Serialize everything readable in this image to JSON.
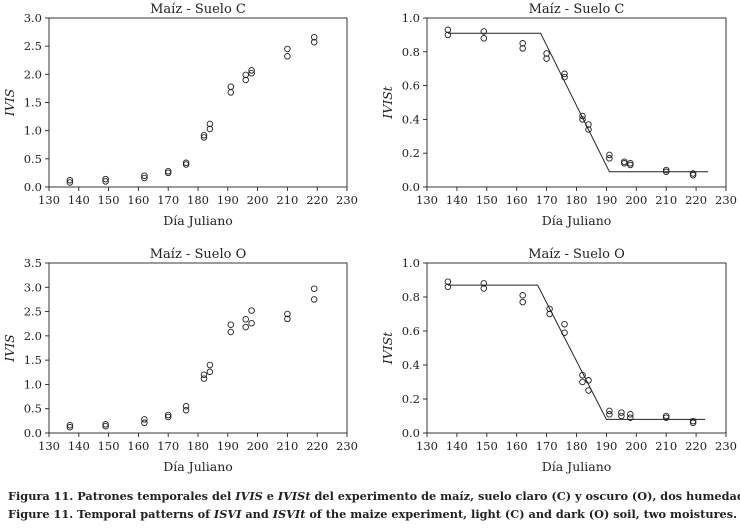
{
  "chart_data": [
    {
      "type": "scatter",
      "title": "Maíz - Suelo C",
      "xlabel": "Día Juliano",
      "ylabel": "IVIS",
      "xlim": [
        130,
        230
      ],
      "ylim": [
        0,
        3
      ],
      "xticks": [
        130,
        140,
        150,
        160,
        170,
        180,
        190,
        200,
        210,
        220,
        230
      ],
      "yticks": [
        "0.0",
        "0.5",
        "1.0",
        "1.5",
        "2.0",
        "2.5",
        "3.0"
      ],
      "x": [
        137,
        137,
        149,
        149,
        162,
        162,
        170,
        170,
        176,
        176,
        182,
        182,
        184,
        184,
        191,
        191,
        196,
        196,
        198,
        198,
        210,
        210,
        219,
        219
      ],
      "y": [
        0.08,
        0.12,
        0.1,
        0.14,
        0.16,
        0.2,
        0.25,
        0.28,
        0.4,
        0.43,
        0.88,
        0.92,
        1.03,
        1.12,
        1.68,
        1.78,
        1.9,
        1.99,
        2.02,
        2.07,
        2.32,
        2.45,
        2.57,
        2.66
      ],
      "fit": null
    },
    {
      "type": "scatter",
      "title": "Maíz - Suelo C",
      "xlabel": "Día Juliano",
      "ylabel": "IVISt",
      "xlim": [
        130,
        230
      ],
      "ylim": [
        0,
        1
      ],
      "xticks": [
        130,
        140,
        150,
        160,
        170,
        180,
        190,
        200,
        210,
        220,
        230
      ],
      "yticks": [
        "0.0",
        "0.2",
        "0.4",
        "0.6",
        "0.8",
        "1.0"
      ],
      "x": [
        137,
        137,
        149,
        149,
        162,
        162,
        170,
        170,
        176,
        176,
        182,
        182,
        184,
        184,
        191,
        191,
        196,
        196,
        198,
        198,
        210,
        210,
        219,
        219
      ],
      "y": [
        0.9,
        0.93,
        0.88,
        0.92,
        0.82,
        0.85,
        0.76,
        0.79,
        0.65,
        0.67,
        0.4,
        0.42,
        0.34,
        0.37,
        0.17,
        0.19,
        0.14,
        0.15,
        0.13,
        0.14,
        0.09,
        0.1,
        0.07,
        0.08
      ],
      "fit": {
        "x": [
          137,
          168,
          191,
          224
        ],
        "y": [
          0.91,
          0.91,
          0.09,
          0.09
        ]
      }
    },
    {
      "type": "scatter",
      "title": "Maíz - Suelo O",
      "xlabel": "Día Juliano",
      "ylabel": "IVIS",
      "xlim": [
        130,
        230
      ],
      "ylim": [
        0,
        3.5
      ],
      "xticks": [
        130,
        140,
        150,
        160,
        170,
        180,
        190,
        200,
        210,
        220,
        230
      ],
      "yticks": [
        "0.0",
        "0.5",
        "1.0",
        "1.5",
        "2.0",
        "2.5",
        "3.0",
        "3.5"
      ],
      "x": [
        137,
        137,
        149,
        149,
        162,
        162,
        170,
        170,
        176,
        176,
        182,
        182,
        184,
        184,
        191,
        191,
        196,
        196,
        198,
        198,
        210,
        210,
        219,
        219
      ],
      "y": [
        0.12,
        0.16,
        0.14,
        0.18,
        0.21,
        0.28,
        0.33,
        0.37,
        0.47,
        0.55,
        1.12,
        1.2,
        1.26,
        1.4,
        2.08,
        2.23,
        2.18,
        2.34,
        2.26,
        2.52,
        2.35,
        2.45,
        2.75,
        2.97
      ],
      "fit": null
    },
    {
      "type": "scatter",
      "title": "Maíz - Suelo O",
      "xlabel": "Día Juliano",
      "ylabel": "IVISt",
      "xlim": [
        130,
        230
      ],
      "ylim": [
        0,
        1
      ],
      "xticks": [
        130,
        140,
        150,
        160,
        170,
        180,
        190,
        200,
        210,
        220,
        230
      ],
      "yticks": [
        "0.0",
        "0.2",
        "0.4",
        "0.6",
        "0.8",
        "1.0"
      ],
      "x": [
        137,
        137,
        149,
        149,
        162,
        162,
        171,
        171,
        176,
        176,
        182,
        182,
        184,
        184,
        191,
        191,
        195,
        195,
        198,
        198,
        210,
        210,
        219,
        219
      ],
      "y": [
        0.86,
        0.89,
        0.85,
        0.88,
        0.77,
        0.81,
        0.7,
        0.73,
        0.59,
        0.64,
        0.3,
        0.34,
        0.25,
        0.31,
        0.11,
        0.13,
        0.1,
        0.12,
        0.09,
        0.11,
        0.09,
        0.1,
        0.06,
        0.07
      ],
      "fit": {
        "x": [
          137,
          167,
          190,
          223
        ],
        "y": [
          0.87,
          0.87,
          0.08,
          0.08
        ]
      }
    }
  ],
  "caption": {
    "es": {
      "lead": "Figura 11. Patrones temporales del ",
      "term1": "IVIS",
      "join": " e ",
      "term2": "IVISt",
      "rest": " del experimento de maíz, suelo claro (C) y oscuro (O), dos humedades."
    },
    "en": {
      "lead": "Figure 11. Temporal patterns of ",
      "term1": "ISVI",
      "join": " and ",
      "term2": "ISVIt",
      "rest": " of the maize experiment, light (C) and dark (O) soil, two moistures."
    }
  }
}
